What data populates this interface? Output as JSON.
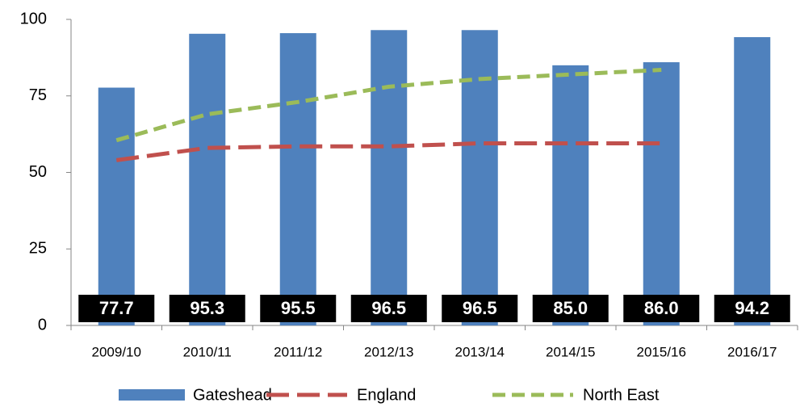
{
  "chart_data": {
    "type": "bar",
    "categories": [
      "2009/10",
      "2010/11",
      "2011/12",
      "2012/13",
      "2013/14",
      "2014/15",
      "2015/16",
      "2016/17"
    ],
    "series": [
      {
        "name": "Gateshead",
        "type": "bar",
        "color": "#4f81bd",
        "values": [
          77.7,
          95.3,
          95.5,
          96.5,
          96.5,
          85,
          86,
          94.2
        ],
        "value_labels": [
          "77.7",
          "95.3",
          "95.5",
          "96.5",
          "96.5",
          "85.0",
          "86.0",
          "94.2"
        ]
      },
      {
        "name": "England",
        "type": "line",
        "color": "#c0504d",
        "values": [
          54,
          58,
          58.5,
          58.5,
          59.5,
          59.5,
          59.5,
          null
        ]
      },
      {
        "name": "North East",
        "type": "line",
        "color": "#9bbb59",
        "values": [
          60.5,
          69,
          73,
          78,
          80.5,
          82,
          83.5,
          null
        ]
      }
    ],
    "ylim": [
      0,
      100
    ],
    "yticks": [
      0,
      25,
      50,
      75,
      100
    ],
    "legend": "bottom"
  }
}
